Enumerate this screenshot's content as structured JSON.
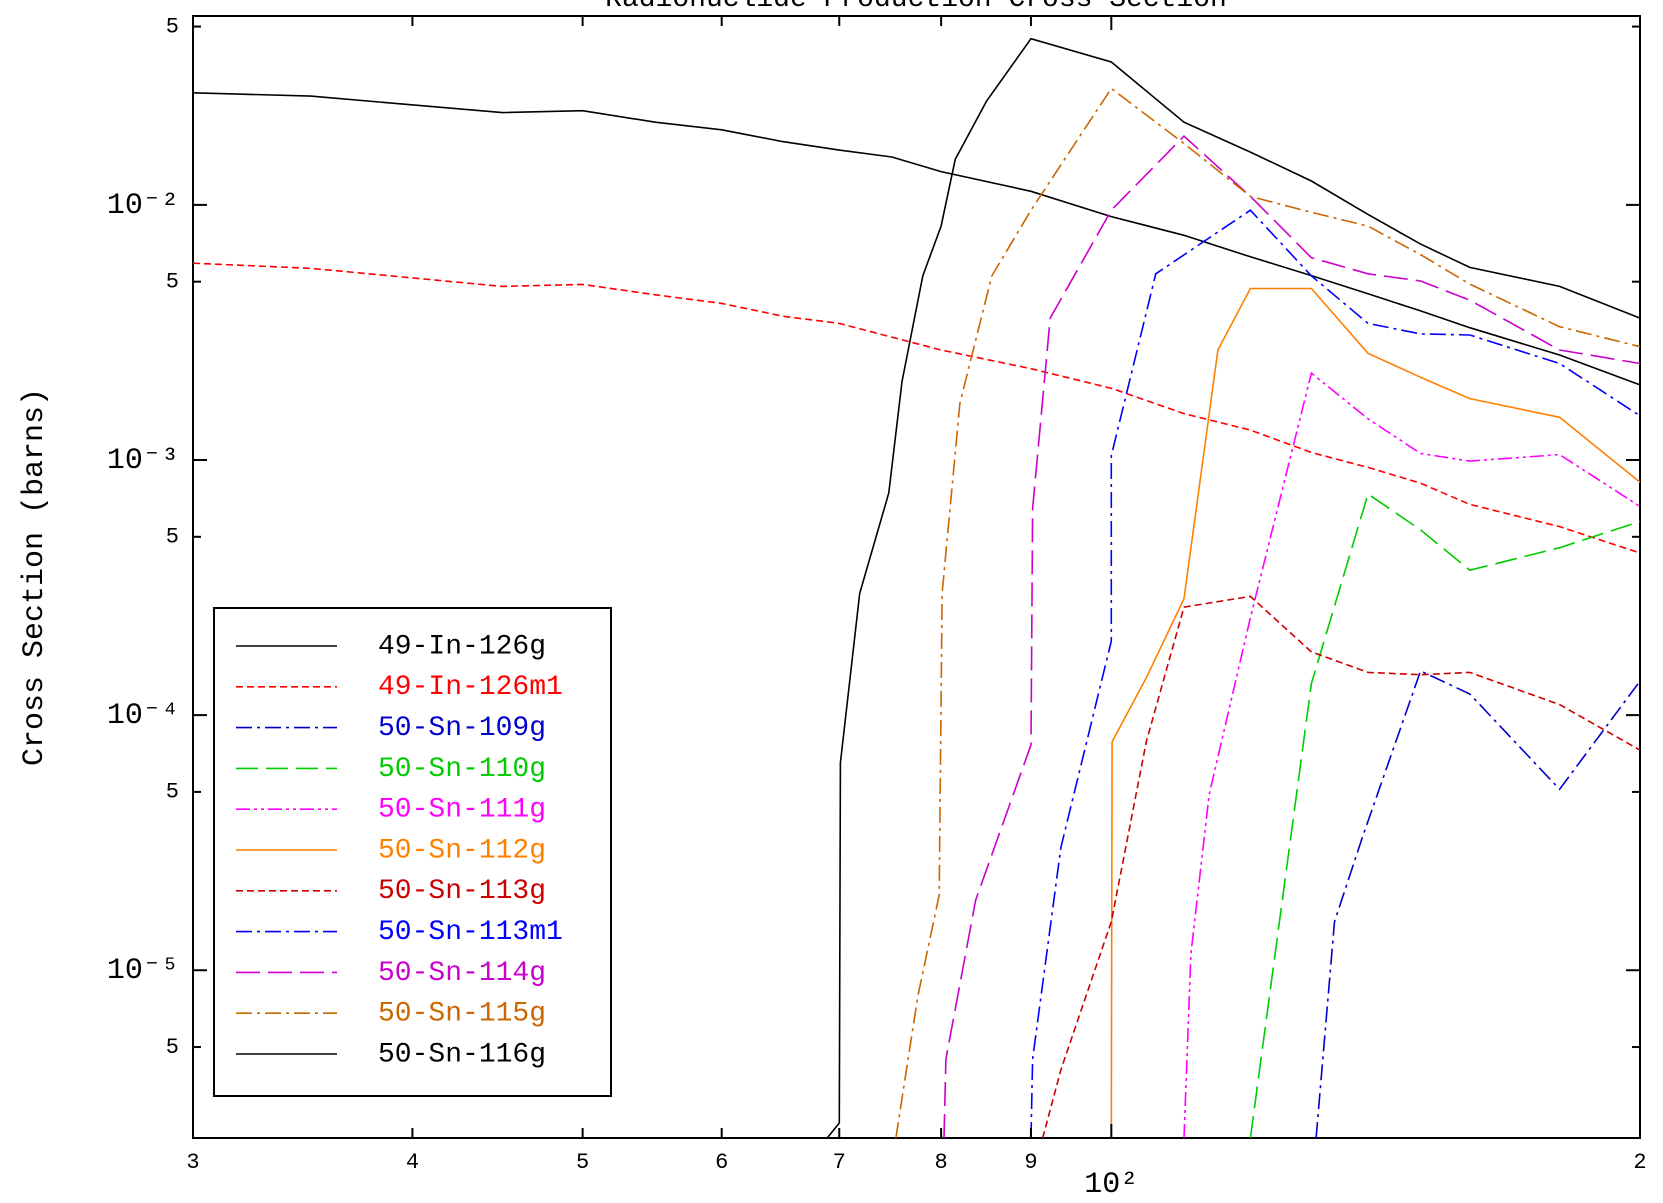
{
  "chart_data": {
    "type": "line",
    "title": "Radionuclide Production Cross Section",
    "ylabel": "Cross Section (barns)",
    "xscale": "log",
    "yscale": "log",
    "xlim": [
      30,
      200
    ],
    "ylim": [
      2.2e-06,
      0.055
    ],
    "xticks": [
      {
        "value": 30,
        "label": "3"
      },
      {
        "value": 40,
        "label": "4"
      },
      {
        "value": 50,
        "label": "5"
      },
      {
        "value": 60,
        "label": "6"
      },
      {
        "value": 70,
        "label": "7"
      },
      {
        "value": 80,
        "label": "8"
      },
      {
        "value": 90,
        "label": "9"
      },
      {
        "value": 100,
        "label": "10²"
      },
      {
        "value": 200,
        "label": "2"
      }
    ],
    "yticks": [
      {
        "value": 0.05,
        "label": "5"
      },
      {
        "value": 0.01,
        "label": "10⁻²"
      },
      {
        "value": 0.005,
        "label": "5"
      },
      {
        "value": 0.001,
        "label": "10⁻³"
      },
      {
        "value": 0.0005,
        "label": "5"
      },
      {
        "value": 0.0001,
        "label": "10⁻⁴"
      },
      {
        "value": 5e-05,
        "label": "5"
      },
      {
        "value": 1e-05,
        "label": "10⁻⁵"
      },
      {
        "value": 5e-06,
        "label": "5"
      }
    ],
    "legend": "lower left",
    "series": [
      {
        "name": "49-In-126g",
        "color": "#000000",
        "dash": "none",
        "x": [
          30,
          35,
          45,
          50,
          55,
          60,
          65,
          70,
          75,
          80,
          90,
          100,
          110,
          120,
          130,
          140,
          150,
          160,
          180,
          200
        ],
        "values": [
          0.0275,
          0.0267,
          0.023,
          0.0234,
          0.0211,
          0.0197,
          0.0177,
          0.0164,
          0.0154,
          0.0135,
          0.0113,
          0.009,
          0.0076,
          0.00626,
          0.00528,
          0.00448,
          0.00384,
          0.0033,
          0.00258,
          0.00197
        ]
      },
      {
        "name": "49-In-126m1",
        "color": "#ff0000",
        "dash": "7,4",
        "x": [
          30,
          35,
          45,
          50,
          55,
          60,
          65,
          70,
          75,
          80,
          90,
          100,
          110,
          120,
          130,
          140,
          150,
          160,
          180,
          200
        ],
        "values": [
          0.00591,
          0.00564,
          0.00479,
          0.00488,
          0.00444,
          0.00411,
          0.00366,
          0.00343,
          0.00303,
          0.0027,
          0.00228,
          0.00191,
          0.00152,
          0.00131,
          0.00107,
          0.000935,
          0.000811,
          0.00067,
          0.000548,
          0.000432
        ]
      },
      {
        "name": "50-Sn-109g",
        "color": "#0000cc",
        "dash": "16,5,3,5",
        "x": [
          130.8,
          134,
          139,
          150,
          160,
          180,
          200
        ],
        "values": [
          2.2e-06,
          1.55e-05,
          3.33e-05,
          0.000149,
          0.000121,
          5.12e-05,
          0.000136
        ]
      },
      {
        "name": "50-Sn-110g",
        "color": "#00cc00",
        "dash": "22,8",
        "x": [
          120,
          130,
          140,
          150,
          160,
          180,
          200
        ],
        "values": [
          2.2e-06,
          0.000133,
          0.000736,
          0.000532,
          0.00037,
          0.000453,
          0.000574
        ]
      },
      {
        "name": "50-Sn-111g",
        "color": "#ff00ff",
        "dash": "14,4,3,4,3,4",
        "x": [
          110,
          111,
          113.7,
          120,
          130,
          140,
          150,
          160,
          180,
          200
        ],
        "values": [
          2.2e-06,
          1.16e-05,
          4.89e-05,
          0.000241,
          0.00219,
          0.00145,
          0.00106,
          0.00099,
          0.00105,
          0.000657
        ]
      },
      {
        "name": "50-Sn-112g",
        "color": "#ff8000",
        "dash": "none",
        "x": [
          100,
          100.1,
          104.7,
          110,
          115,
          120,
          130,
          140,
          150,
          160,
          180,
          200
        ],
        "values": [
          2.2e-06,
          7.87e-05,
          0.00014,
          0.000286,
          0.0027,
          0.0047,
          0.0047,
          0.00262,
          0.00211,
          0.00174,
          0.00147,
          0.000818
        ]
      },
      {
        "name": "50-Sn-113g",
        "color": "#cc0000",
        "dash": "7,4",
        "x": [
          91.4,
          93.6,
          100,
          104.7,
          110,
          120,
          130,
          140,
          150,
          160,
          180,
          200
        ],
        "values": [
          2.2e-06,
          4.07e-06,
          1.55e-05,
          7.87e-05,
          0.000265,
          0.000292,
          0.000177,
          0.000147,
          0.000144,
          0.000147,
          0.00011,
          7.29e-05
        ]
      },
      {
        "name": "50-Sn-113m1",
        "color": "#0000ff",
        "dash": "16,5,3,5",
        "x": [
          90,
          90.2,
          93.6,
          100,
          100,
          106,
          120,
          130,
          140,
          150,
          160,
          180,
          200
        ],
        "values": [
          2.2e-06,
          4.48e-06,
          3.03e-05,
          0.000195,
          0.00104,
          0.00537,
          0.00953,
          0.00527,
          0.00343,
          0.00312,
          0.00309,
          0.00239,
          0.00149
        ]
      },
      {
        "name": "50-Sn-114g",
        "color": "#cc00cc",
        "dash": "24,8",
        "x": [
          80.3,
          80.5,
          83.7,
          90,
          90.2,
          92.3,
          100,
          110,
          120,
          130,
          140,
          150,
          160,
          180,
          200
        ],
        "values": [
          2.2e-06,
          4.48e-06,
          1.88e-05,
          7.65e-05,
          0.000644,
          0.0036,
          0.00953,
          0.0186,
          0.0108,
          0.00621,
          0.00537,
          0.00503,
          0.00423,
          0.0027,
          0.00239
        ]
      },
      {
        "name": "50-Sn-115g",
        "color": "#cc6600",
        "dash": "16,5,3,5",
        "x": [
          75.4,
          77.6,
          79.8,
          80.1,
          82,
          85.5,
          90,
          100,
          110,
          120,
          130,
          140,
          150,
          160,
          180,
          200
        ],
        "values": [
          2.2e-06,
          7.94e-06,
          1.97e-05,
          0.0003,
          0.00167,
          0.00527,
          0.00953,
          0.0286,
          0.0174,
          0.0108,
          0.00935,
          0.00826,
          0.00638,
          0.00489,
          0.00333,
          0.00278
        ]
      },
      {
        "name": "50-Sn-116g",
        "color": "#000000",
        "dash": "none",
        "x": [
          68.9,
          70,
          70.1,
          71.9,
          74.7,
          76,
          78.1,
          80,
          81.5,
          84.9,
          90,
          100,
          110,
          120,
          130,
          140,
          150,
          160,
          180,
          200
        ],
        "values": [
          2.2e-06,
          2.52e-06,
          6.5e-05,
          0.0003,
          0.000743,
          0.00203,
          0.00527,
          0.00826,
          0.0151,
          0.0255,
          0.0448,
          0.0363,
          0.0211,
          0.0161,
          0.0124,
          0.00918,
          0.00702,
          0.00569,
          0.00479,
          0.0036
        ]
      }
    ]
  }
}
